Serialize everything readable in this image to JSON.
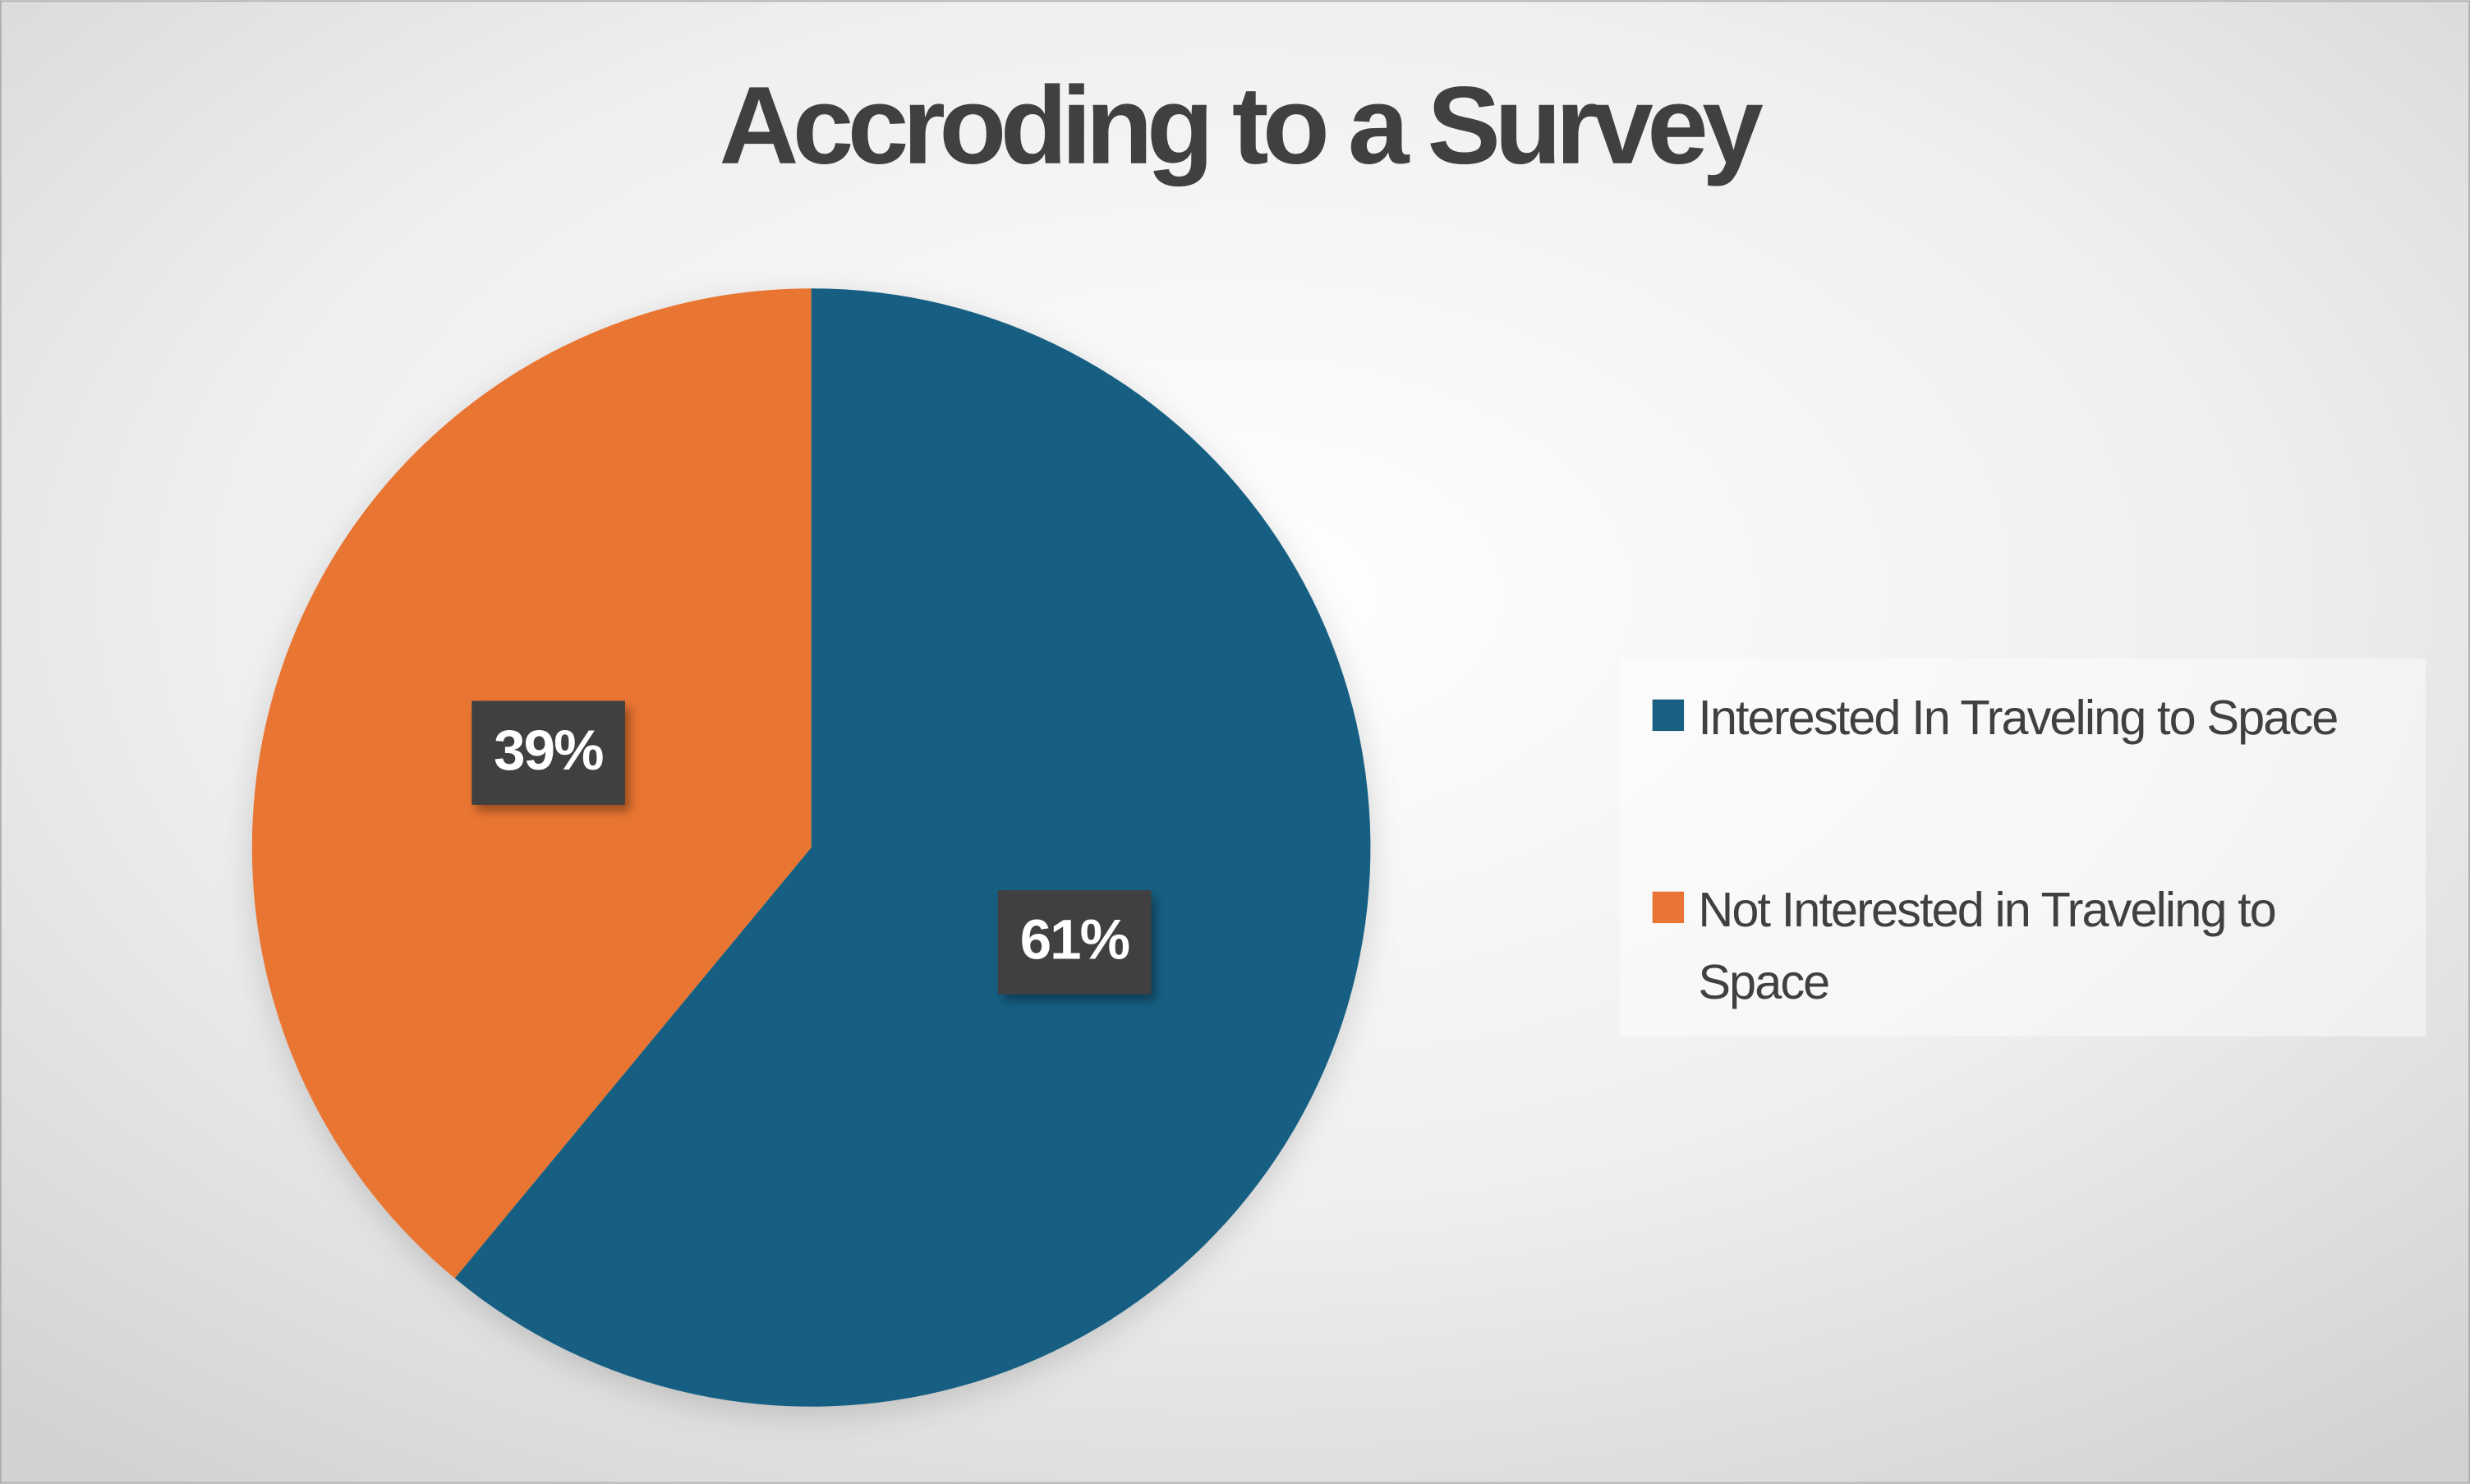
{
  "chart_data": {
    "type": "pie",
    "title": "Accroding to a Survey",
    "labels": [
      "Interested In Traveling to Space",
      "Not Interested in Traveling to Space"
    ],
    "values": [
      61,
      39
    ],
    "value_labels": [
      "61%",
      "39%"
    ],
    "colors": [
      "#185f82",
      "#e97433"
    ],
    "legend": "right"
  }
}
